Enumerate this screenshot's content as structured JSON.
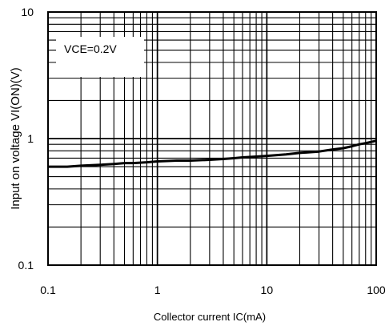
{
  "chart_data": {
    "type": "line",
    "x_scale": "log",
    "y_scale": "log",
    "xlim": [
      0.1,
      100
    ],
    "ylim": [
      0.1,
      10
    ],
    "grid": true,
    "xlabel": "Collector current IC(mA)",
    "ylabel": "Input on voltage VI(ON)(V)",
    "annotation": "VCE=0.2V",
    "x_ticks": [
      "0.1",
      "1",
      "10",
      "100"
    ],
    "y_ticks": [
      "0.1",
      "1",
      "10"
    ],
    "series": [
      {
        "x": [
          0.1,
          0.15,
          0.2,
          0.3,
          0.4,
          0.5,
          0.6,
          0.8,
          1,
          1.5,
          2,
          3,
          4,
          5,
          6,
          8,
          10,
          15,
          20,
          30,
          40,
          50,
          60,
          70,
          80,
          100
        ],
        "y": [
          0.6,
          0.6,
          0.61,
          0.62,
          0.63,
          0.64,
          0.64,
          0.65,
          0.66,
          0.67,
          0.67,
          0.68,
          0.69,
          0.7,
          0.71,
          0.72,
          0.73,
          0.75,
          0.77,
          0.79,
          0.82,
          0.84,
          0.87,
          0.9,
          0.92,
          0.96
        ]
      }
    ]
  }
}
